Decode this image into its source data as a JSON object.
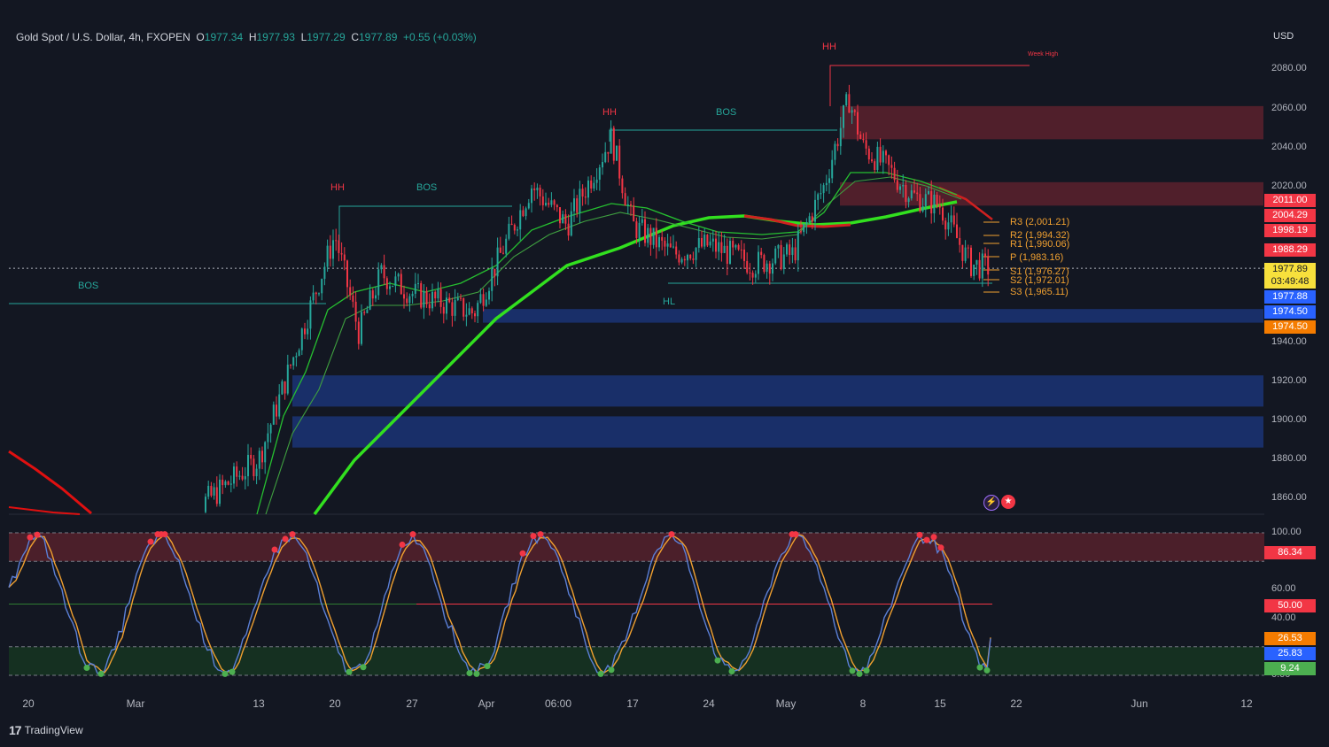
{
  "header": {
    "symbol": "Gold Spot / U.S. Dollar, 4h, FXOPEN",
    "o_label": "O",
    "o_value": "1977.34",
    "h_label": "H",
    "h_value": "1977.93",
    "l_label": "L",
    "l_value": "1977.29",
    "c_label": "C",
    "c_value": "1977.89",
    "change": "+0.55 (+0.03%)"
  },
  "currency": "USD",
  "footer": {
    "logo": "17",
    "brand": "TradingView"
  },
  "y_axis_labels": [
    "2080.00",
    "2060.00",
    "2040.00",
    "2020.00",
    "1940.00",
    "1920.00",
    "1900.00",
    "1880.00",
    "1860.00"
  ],
  "osc_axis_labels": [
    "100.00",
    "60.00",
    "40.00",
    "0.00"
  ],
  "x_axis_labels": [
    "20",
    "Mar",
    "13",
    "20",
    "27",
    "Apr",
    "06:00",
    "17",
    "24",
    "May",
    "8",
    "15",
    "22",
    "Jun",
    "12"
  ],
  "price_badges": [
    {
      "text": "2011.00",
      "bg": "#f23645"
    },
    {
      "text": "2004.29",
      "bg": "#f23645"
    },
    {
      "text": "1998.19",
      "bg": "#f23645"
    },
    {
      "text": "1988.29",
      "bg": "#f23645"
    },
    {
      "text": "1977.89",
      "bg": "#f7e03c"
    },
    {
      "text": "03:49:48",
      "bg": "#f7e03c"
    },
    {
      "text": "1977.88",
      "bg": "#2962ff"
    },
    {
      "text": "1974.50",
      "bg": "#2962ff"
    },
    {
      "text": "1974.50",
      "bg": "#f57c00"
    }
  ],
  "osc_badges": [
    {
      "text": "86.34",
      "bg": "#f23645"
    },
    {
      "text": "50.00",
      "bg": "#f23645"
    },
    {
      "text": "26.53",
      "bg": "#f57c00"
    },
    {
      "text": "25.83",
      "bg": "#2962ff"
    },
    {
      "text": "9.24",
      "bg": "#4caf50"
    }
  ],
  "pivots": [
    {
      "text": "R3 (2,001.21)"
    },
    {
      "text": "R2 (1,994.32)"
    },
    {
      "text": "R1 (1,990.06)"
    },
    {
      "text": "P (1,983.16)"
    },
    {
      "text": "S1 (1,976.27)"
    },
    {
      "text": "S2 (1,972.01)"
    },
    {
      "text": "S3 (1,965.11)"
    }
  ],
  "annotations": {
    "hh1": "HH",
    "hh2": "HH",
    "hh3": "HH",
    "bos1": "BOS",
    "bos2": "BOS",
    "bos3": "BOS",
    "hl": "HL",
    "week_high": "Week High"
  },
  "colors": {
    "background": "#131722",
    "up": "#26a69a",
    "down": "#f23645",
    "ema_fast": "#2ecc40",
    "ema_slow": "#32e01f",
    "supply_zone": "#f23645",
    "demand_zone": "#2962ff",
    "stoch_k": "#5b7fd6",
    "stoch_d": "#f0a030"
  },
  "chart_data": {
    "type": "line",
    "symbol": "XAUUSD",
    "timeframe": "4h",
    "ylim": [
      1845,
      2090
    ],
    "close_path": [
      [
        "Feb 20",
        1840
      ],
      [
        "Mar",
        1830
      ],
      [
        "Mar 13",
        1880
      ],
      [
        "Mar 20",
        1995
      ],
      [
        "Mar 22",
        1945
      ],
      [
        "Mar 24",
        1975
      ],
      [
        "Mar 27",
        1965
      ],
      [
        "Mar 31",
        1955
      ],
      [
        "Apr 04",
        2020
      ],
      [
        "Apr 07",
        2000
      ],
      [
        "Apr 13",
        2045
      ],
      [
        "Apr 17",
        2000
      ],
      [
        "Apr 20",
        1985
      ],
      [
        "Apr 24",
        1990
      ],
      [
        "Apr 28",
        1980
      ],
      [
        "May 01",
        1985
      ],
      [
        "May 04",
        2020
      ],
      [
        "May 05",
        2065
      ],
      [
        "May 08",
        2040
      ],
      [
        "May 10",
        2030
      ],
      [
        "May 12",
        2015
      ],
      [
        "May 15",
        2010
      ],
      [
        "May 18",
        1980
      ],
      [
        "May 19",
        1977.89
      ]
    ],
    "stochastic": {
      "last_k": 25.83,
      "last_d": 26.53,
      "levels": [
        80,
        50,
        20
      ]
    },
    "zones": {
      "supply": [
        [
          2044,
          2061
        ],
        [
          2010,
          2022
        ]
      ],
      "demand": [
        [
          1950,
          1957
        ],
        [
          1907,
          1923
        ],
        [
          1886,
          1902
        ]
      ]
    }
  }
}
